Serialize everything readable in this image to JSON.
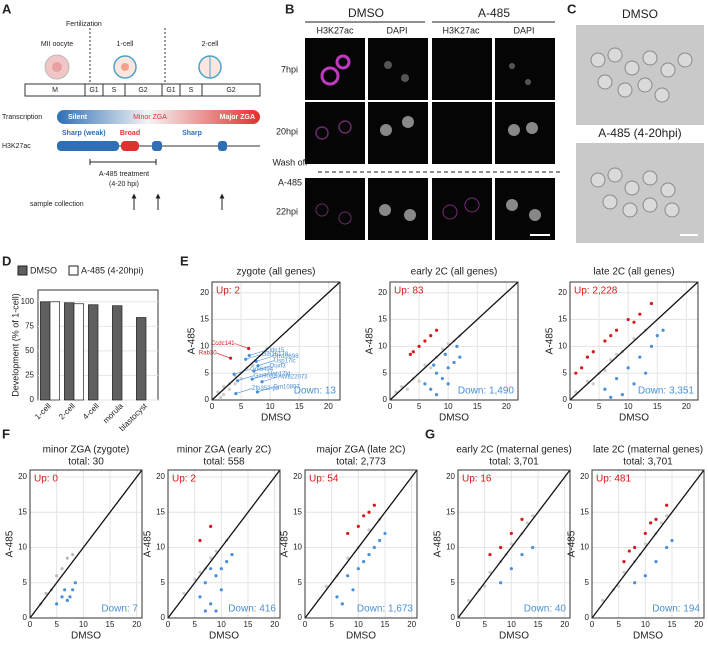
{
  "panels": [
    "A",
    "B",
    "C",
    "D",
    "E",
    "F",
    "G"
  ],
  "diagram": {
    "fertilization": "Fertilization",
    "stages": [
      "MII oocyte",
      "1-cell",
      "2-cell"
    ],
    "phases": [
      "M",
      "G1",
      "S",
      "G2",
      "G1",
      "S",
      "G2"
    ],
    "rows": [
      "Transcription",
      "H3K27ac"
    ],
    "transcription": [
      "Silent",
      "Minor ZGA",
      "Major ZGA"
    ],
    "h3k27ac": [
      "Sharp (weak)",
      "Broad",
      "Sharp"
    ],
    "treatment": [
      "A-485 treatment",
      "(4-20 hpi)"
    ],
    "sample": "sample collection"
  },
  "images_b": {
    "groups": [
      "DMSO",
      "A-485"
    ],
    "channels": [
      "H3K27ac",
      "DAPI",
      "H3K27ac",
      "DAPI"
    ],
    "rows": [
      "7hpi",
      "20hpi",
      "22hpi"
    ],
    "washoff": [
      "Wash off",
      "A-485"
    ]
  },
  "images_c": {
    "labels": [
      "DMSO",
      "A-485 (4-20hpi)"
    ]
  },
  "chart_data": [
    {
      "type": "bar",
      "ylabel": "Development (% of 1-cell)",
      "categories": [
        "1-cell",
        "2-cell",
        "4-cell",
        "morula",
        "blastocyst"
      ],
      "series": [
        {
          "name": "DMSO",
          "color": "#5f5f5f",
          "values": [
            100,
            99,
            97,
            96,
            84
          ]
        },
        {
          "name": "A-485 (4-20hpi)",
          "color": "#ffffff",
          "values": [
            100,
            98,
            0,
            0,
            0
          ]
        }
      ],
      "ylim": [
        0,
        112
      ],
      "yticks": [
        0,
        25,
        50,
        75,
        100
      ]
    },
    {
      "type": "scatter",
      "title": "zygote (all genes)",
      "xlabel": "DMSO",
      "ylabel": "A-485",
      "up_label": "Up: 2",
      "down_label": "Down: 13",
      "xlim": [
        0,
        22
      ],
      "ylim": [
        0,
        22
      ],
      "xticks": [
        0,
        5,
        10,
        15,
        20
      ],
      "yticks": [
        0,
        5,
        10,
        15,
        20
      ],
      "other": {
        "color": "#cccccc",
        "x": [
          1,
          2,
          3,
          4,
          5,
          6,
          2,
          4,
          3,
          5,
          7,
          1.5
        ],
        "y": [
          1.5,
          2.5,
          3,
          4.5,
          5,
          6,
          1,
          3,
          2,
          4,
          6.5,
          0.5
        ]
      },
      "up": {
        "color": "#d7191c",
        "x": [
          3.2,
          6.3
        ],
        "y": [
          7.8,
          9.6
        ],
        "labels": [
          "Rab30",
          "Ccdc141"
        ]
      },
      "down": {
        "color": "#4a90d9",
        "x": [
          6.4,
          5.8,
          7.6,
          7.9,
          7.2,
          3.8,
          4.4,
          6.9,
          8.6,
          4.1,
          7.8
        ],
        "y": [
          8.3,
          7.6,
          7.2,
          6.4,
          5.4,
          4.8,
          3.6,
          3.9,
          3.4,
          1.2,
          1.5
        ],
        "labels": [
          "Cldn15",
          "Gm16178",
          "Gm10698",
          "Usp17lc",
          "Duxf3",
          "Gm6494",
          "Gm9032",
          "Usp17ld",
          "AW822073",
          "Zfp352-ps",
          "Gm10807"
        ]
      }
    },
    {
      "type": "scatter",
      "title": "early 2C (all genes)",
      "xlabel": "DMSO",
      "ylabel": "A-485",
      "up_label": "Up: 83",
      "down_label": "Down: 1,490",
      "xlim": [
        0,
        22
      ],
      "ylim": [
        0,
        22
      ],
      "xticks": [
        0,
        5,
        10,
        15,
        20
      ],
      "yticks": [
        0,
        5,
        10,
        15,
        20
      ],
      "other": {
        "color": "#cccccc",
        "x": [
          2,
          4,
          6,
          8,
          10,
          12,
          3,
          7,
          9,
          11,
          5,
          1
        ],
        "y": [
          2.5,
          4,
          6.5,
          8,
          10.5,
          12,
          2,
          6,
          9.5,
          11,
          3.5,
          1.5
        ]
      },
      "up": {
        "color": "#d7191c",
        "x": [
          4,
          5,
          6,
          7,
          8,
          3.5
        ],
        "y": [
          9,
          10,
          11,
          12,
          13,
          8.5
        ]
      },
      "down": {
        "color": "#4a90d9",
        "x": [
          6,
          7,
          8,
          9,
          10,
          11,
          12,
          8,
          10,
          9.5,
          11.5,
          7.5
        ],
        "y": [
          3,
          2,
          5,
          4,
          6,
          7,
          8,
          1,
          3,
          8.5,
          10,
          6.5
        ]
      }
    },
    {
      "type": "scatter",
      "title": "late 2C (all genes)",
      "xlabel": "DMSO",
      "ylabel": "A-485",
      "up_label": "Up: 2,228",
      "down_label": "Down: 3,351",
      "xlim": [
        0,
        22
      ],
      "ylim": [
        0,
        22
      ],
      "xticks": [
        0,
        5,
        10,
        15,
        20
      ],
      "yticks": [
        0,
        5,
        10,
        15,
        20
      ],
      "other": {
        "color": "#cccccc",
        "x": [
          1,
          3,
          5,
          7,
          9,
          11,
          13,
          4,
          6,
          8
        ],
        "y": [
          1.5,
          3.5,
          5,
          7.5,
          9,
          11.5,
          13,
          3,
          5.5,
          8.5
        ]
      },
      "up": {
        "color": "#d7191c",
        "x": [
          1,
          2,
          4,
          6,
          8,
          10,
          12,
          14,
          3,
          7,
          11
        ],
        "y": [
          5,
          6,
          9,
          11,
          13,
          15,
          16,
          18,
          8,
          12,
          14.5
        ]
      },
      "down": {
        "color": "#4a90d9",
        "x": [
          6,
          8,
          10,
          12,
          14,
          15,
          9,
          11,
          13,
          7,
          16
        ],
        "y": [
          2,
          4,
          6,
          8,
          10,
          12,
          1,
          3,
          5,
          0.5,
          13
        ]
      }
    },
    {
      "type": "scatter",
      "title": "minor ZGA (zygote)",
      "subtitle": "total: 30",
      "xlabel": "DMSO",
      "ylabel": "A-485",
      "up_label": "Up: 0",
      "down_label": "Down: 7",
      "xlim": [
        0,
        21
      ],
      "ylim": [
        0,
        21
      ],
      "xticks": [
        0,
        5,
        10,
        15,
        20
      ],
      "yticks": [
        0,
        5,
        10,
        15,
        20
      ],
      "other": {
        "color": "#bbbbbb",
        "x": [
          2,
          3,
          4,
          5,
          6,
          7,
          8
        ],
        "y": [
          2,
          3.5,
          4,
          6,
          7,
          8.5,
          9
        ]
      },
      "up": {
        "color": "#d7191c",
        "x": [],
        "y": []
      },
      "down": {
        "color": "#4a90d9",
        "x": [
          5,
          6,
          7,
          8,
          8.5,
          7.5,
          6.5
        ],
        "y": [
          2,
          3,
          2.5,
          4,
          5,
          3,
          4
        ]
      }
    },
    {
      "type": "scatter",
      "title": "minor ZGA (early 2C)",
      "subtitle": "total: 558",
      "xlabel": "DMSO",
      "ylabel": "A-485",
      "up_label": "Up: 2",
      "down_label": "Down: 416",
      "xlim": [
        0,
        21
      ],
      "ylim": [
        0,
        21
      ],
      "xticks": [
        0,
        5,
        10,
        15,
        20
      ],
      "yticks": [
        0,
        5,
        10,
        15,
        20
      ],
      "other": {
        "color": "#cccccc",
        "x": [
          3,
          5,
          7,
          9,
          11,
          6,
          8
        ],
        "y": [
          3.5,
          5.5,
          7,
          9.5,
          11,
          6.5,
          8.5
        ]
      },
      "up": {
        "color": "#d7191c",
        "x": [
          6,
          8
        ],
        "y": [
          11,
          13
        ]
      },
      "down": {
        "color": "#4a90d9",
        "x": [
          6,
          7,
          8,
          9,
          10,
          11,
          12,
          9,
          8,
          10,
          7
        ],
        "y": [
          3,
          5,
          2,
          6,
          4,
          8,
          9,
          1,
          7,
          7,
          1
        ]
      }
    },
    {
      "type": "scatter",
      "title": "major ZGA (late 2C)",
      "subtitle": "total: 2,773",
      "xlabel": "DMSO",
      "ylabel": "A-485",
      "up_label": "Up: 54",
      "down_label": "Down: 1,673",
      "xlim": [
        0,
        21
      ],
      "ylim": [
        0,
        21
      ],
      "xticks": [
        0,
        5,
        10,
        15,
        20
      ],
      "yticks": [
        0,
        5,
        10,
        15,
        20
      ],
      "other": {
        "color": "#cccccc",
        "x": [
          4,
          6,
          8,
          10,
          12,
          14
        ],
        "y": [
          4.5,
          6,
          8.5,
          10,
          12.5,
          14
        ]
      },
      "up": {
        "color": "#d7191c",
        "x": [
          8,
          10,
          12,
          13,
          11
        ],
        "y": [
          12,
          13,
          15,
          16,
          14.5
        ]
      },
      "down": {
        "color": "#4a90d9",
        "x": [
          6,
          8,
          10,
          12,
          14,
          15,
          9,
          11,
          13,
          7
        ],
        "y": [
          3,
          6,
          7,
          9,
          11,
          12,
          4,
          8,
          10,
          2
        ]
      }
    },
    {
      "type": "scatter",
      "title": "early 2C (maternal genes)",
      "subtitle": "total: 3,701",
      "xlabel": "DMSO",
      "ylabel": "A-485",
      "up_label": "Up: 16",
      "down_label": "Down: 40",
      "xlim": [
        0,
        21
      ],
      "ylim": [
        0,
        21
      ],
      "xticks": [
        0,
        5,
        10,
        15,
        20
      ],
      "yticks": [
        0,
        5,
        10,
        15,
        20
      ],
      "other": {
        "color": "#cccccc",
        "x": [
          2,
          4,
          6,
          8,
          10,
          12,
          14,
          5,
          9,
          13
        ],
        "y": [
          2.5,
          4,
          6.5,
          8,
          10.5,
          12,
          14.5,
          4.5,
          9,
          13.5
        ]
      },
      "up": {
        "color": "#d7191c",
        "x": [
          6,
          8,
          10,
          12
        ],
        "y": [
          9,
          10,
          12,
          14
        ]
      },
      "down": {
        "color": "#4a90d9",
        "x": [
          8,
          10,
          12,
          14
        ],
        "y": [
          5,
          7,
          9,
          10
        ]
      }
    },
    {
      "type": "scatter",
      "title": "late 2C (maternal genes)",
      "subtitle": "total: 3,701",
      "xlabel": "DMSO",
      "ylabel": "A-485",
      "up_label": "Up: 481",
      "down_label": "Down: 194",
      "xlim": [
        0,
        21
      ],
      "ylim": [
        0,
        21
      ],
      "xticks": [
        0,
        5,
        10,
        15,
        20
      ],
      "yticks": [
        0,
        5,
        10,
        15,
        20
      ],
      "other": {
        "color": "#cccccc",
        "x": [
          2,
          4,
          6,
          8,
          10,
          12,
          14,
          5,
          9,
          13
        ],
        "y": [
          2.5,
          4,
          6.5,
          8,
          10.5,
          12,
          14.5,
          4.5,
          9,
          13.5
        ]
      },
      "up": {
        "color": "#d7191c",
        "x": [
          6,
          8,
          10,
          12,
          14,
          7,
          11
        ],
        "y": [
          8,
          10,
          12,
          14,
          16,
          9.5,
          13.5
        ]
      },
      "down": {
        "color": "#4a90d9",
        "x": [
          8,
          10,
          12,
          14,
          15
        ],
        "y": [
          5,
          6,
          8,
          10,
          11
        ]
      }
    }
  ]
}
